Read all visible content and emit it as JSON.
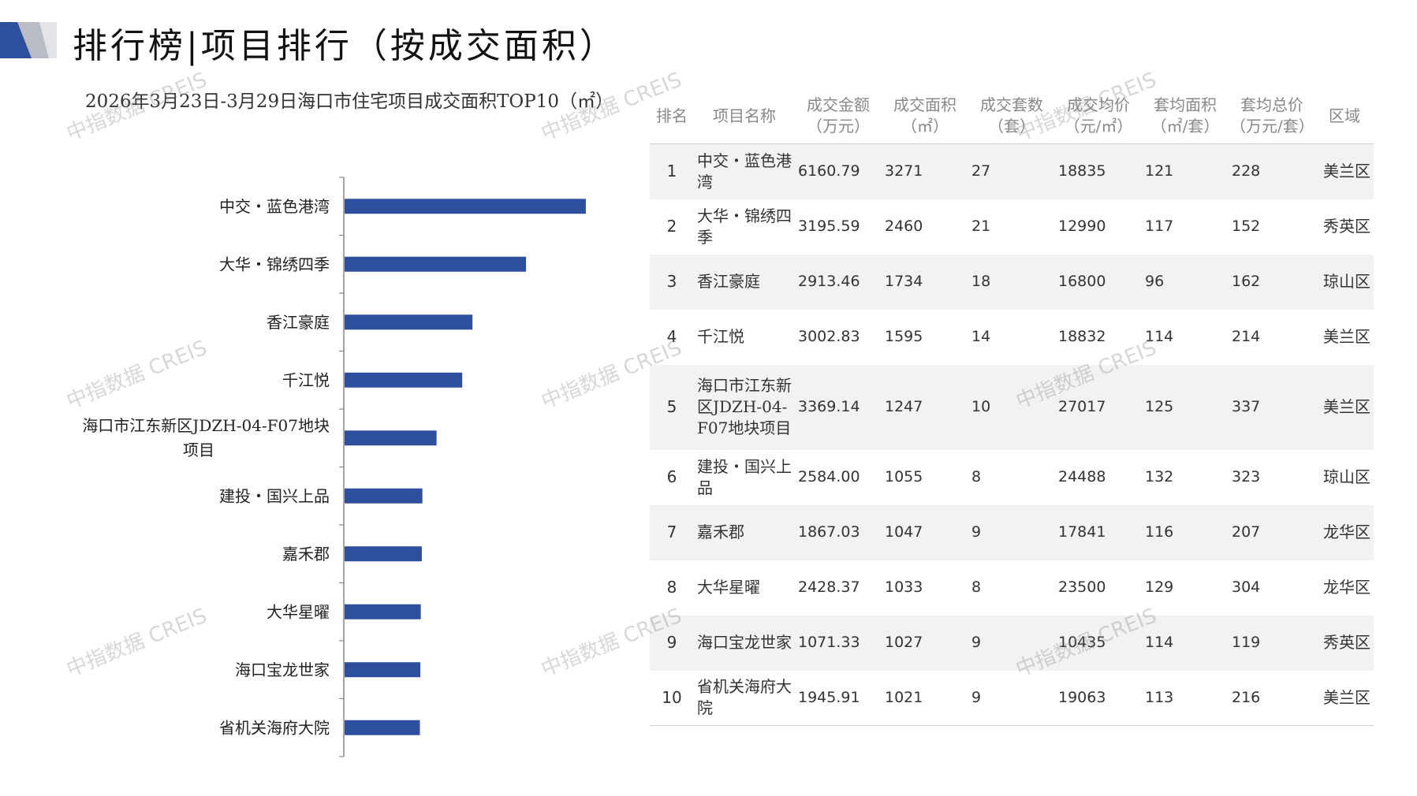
{
  "header": {
    "title": "排行榜|项目排行（按成交面积）"
  },
  "chart_data": {
    "type": "bar",
    "orientation": "horizontal",
    "title": "2026年3月23日-3月29日海口市住宅项目成交面积TOP10（㎡）",
    "categories": [
      "中交・蓝色港湾",
      "大华・锦绣四季",
      "香江豪庭",
      "千江悦",
      "海口市江东新区JDZH-04-F07地块项目",
      "建投・国兴上品",
      "嘉禾郡",
      "大华星曜",
      "海口宝龙世家",
      "省机关海府大院"
    ],
    "category_lines": [
      [
        "中交・蓝色港湾"
      ],
      [
        "大华・锦绣四季"
      ],
      [
        "香江豪庭"
      ],
      [
        "千江悦"
      ],
      [
        "海口市江东新区JDZH-04-F07地块",
        "项目"
      ],
      [
        "建投・国兴上品"
      ],
      [
        "嘉禾郡"
      ],
      [
        "大华星曜"
      ],
      [
        "海口宝龙世家"
      ],
      [
        "省机关海府大院"
      ]
    ],
    "values": [
      3271,
      2460,
      1734,
      1595,
      1247,
      1055,
      1047,
      1033,
      1027,
      1021
    ],
    "xlim": [
      0,
      3400
    ],
    "grid": false,
    "bar_color": "#2e4f9e"
  },
  "table": {
    "headers": [
      [
        "排名"
      ],
      [
        "项目名称"
      ],
      [
        "成交金额",
        "（万元）"
      ],
      [
        "成交面积",
        "（㎡）"
      ],
      [
        "成交套数",
        "（套）"
      ],
      [
        "成交均价",
        "（元/㎡）"
      ],
      [
        "套均面积",
        "（㎡/套）"
      ],
      [
        "套均总价",
        "（万元/套）"
      ],
      [
        "区域"
      ]
    ],
    "rows": [
      {
        "rank": "1",
        "name": "中交・蓝色港湾",
        "amount": "6160.79",
        "area": "3271",
        "units": "27",
        "price": "18835",
        "avg_area": "121",
        "avg_total": "228",
        "district": "美兰区"
      },
      {
        "rank": "2",
        "name": "大华・锦绣四季",
        "amount": "3195.59",
        "area": "2460",
        "units": "21",
        "price": "12990",
        "avg_area": "117",
        "avg_total": "152",
        "district": "秀英区"
      },
      {
        "rank": "3",
        "name": "香江豪庭",
        "amount": "2913.46",
        "area": "1734",
        "units": "18",
        "price": "16800",
        "avg_area": "96",
        "avg_total": "162",
        "district": "琼山区"
      },
      {
        "rank": "4",
        "name": "千江悦",
        "amount": "3002.83",
        "area": "1595",
        "units": "14",
        "price": "18832",
        "avg_area": "114",
        "avg_total": "214",
        "district": "美兰区"
      },
      {
        "rank": "5",
        "name": "海口市江东新区JDZH-04-F07地块项目",
        "amount": "3369.14",
        "area": "1247",
        "units": "10",
        "price": "27017",
        "avg_area": "125",
        "avg_total": "337",
        "district": "美兰区"
      },
      {
        "rank": "6",
        "name": "建投・国兴上品",
        "amount": "2584.00",
        "area": "1055",
        "units": "8",
        "price": "24488",
        "avg_area": "132",
        "avg_total": "323",
        "district": "琼山区"
      },
      {
        "rank": "7",
        "name": "嘉禾郡",
        "amount": "1867.03",
        "area": "1047",
        "units": "9",
        "price": "17841",
        "avg_area": "116",
        "avg_total": "207",
        "district": "龙华区"
      },
      {
        "rank": "8",
        "name": "大华星曜",
        "amount": "2428.37",
        "area": "1033",
        "units": "8",
        "price": "23500",
        "avg_area": "129",
        "avg_total": "304",
        "district": "龙华区"
      },
      {
        "rank": "9",
        "name": "海口宝龙世家",
        "amount": "1071.33",
        "area": "1027",
        "units": "9",
        "price": "10435",
        "avg_area": "114",
        "avg_total": "119",
        "district": "秀英区"
      },
      {
        "rank": "10",
        "name": "省机关海府大院",
        "amount": "1945.91",
        "area": "1021",
        "units": "9",
        "price": "19063",
        "avg_area": "113",
        "avg_total": "216",
        "district": "美兰区"
      }
    ]
  },
  "watermark": "中指数据 CREIS"
}
